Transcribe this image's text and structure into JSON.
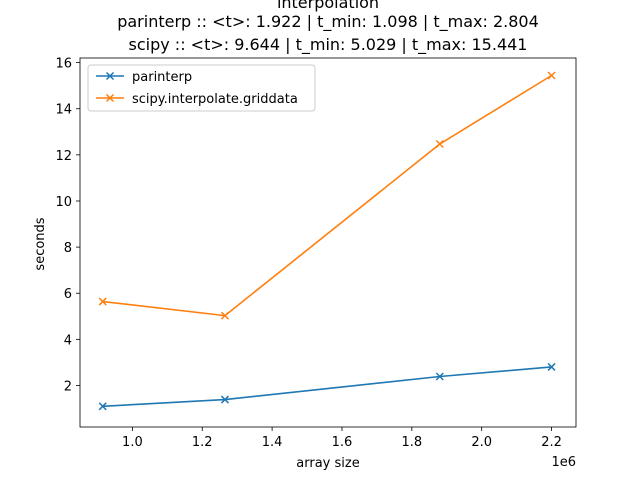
{
  "chart_data": {
    "type": "line",
    "title": "interpolation",
    "subtitle_lines": [
      "parinterp :: <t>: 1.922 | t_min: 1.098 | t_max: 2.804",
      "scipy :: <t>: 9.644 | t_min: 5.029 | t_max: 15.441"
    ],
    "xlabel": "array size",
    "ylabel": "seconds",
    "x_offset_label": "1e6",
    "x_scale": 1000000,
    "xlim": [
      0.85,
      2.27
    ],
    "ylim": [
      0.2,
      16.2
    ],
    "x_ticks": [
      1.0,
      1.2,
      1.4,
      1.6,
      1.8,
      2.0,
      2.2
    ],
    "x_tick_labels": [
      "1.0",
      "1.2",
      "1.4",
      "1.6",
      "1.8",
      "2.0",
      "2.2"
    ],
    "y_ticks": [
      2,
      4,
      6,
      8,
      10,
      12,
      14,
      16
    ],
    "y_tick_labels": [
      "2",
      "4",
      "6",
      "8",
      "10",
      "12",
      "14",
      "16"
    ],
    "grid": false,
    "legend_position": "top-left",
    "marker": "x",
    "x": [
      0.915,
      1.265,
      1.88,
      2.2
    ],
    "series": [
      {
        "name": "parinterp",
        "color": "#1f77b4",
        "values": [
          1.098,
          1.39,
          2.39,
          2.804
        ]
      },
      {
        "name": "scipy.interpolate.griddata",
        "color": "#ff7f0e",
        "values": [
          5.64,
          5.029,
          12.47,
          15.441
        ]
      }
    ]
  }
}
